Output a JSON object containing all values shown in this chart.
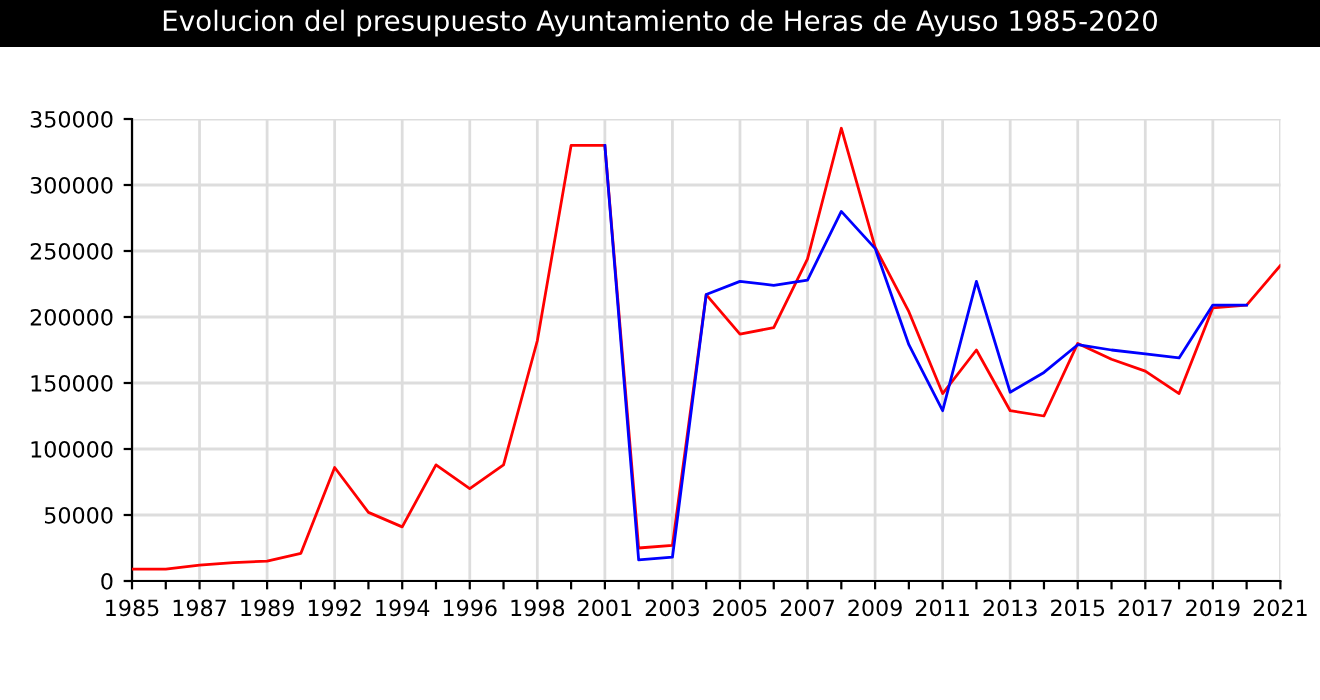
{
  "chart_data": {
    "type": "line",
    "title": "Evolucion del presupuesto Ayuntamiento de Heras de Ayuso 1985-2020",
    "categories": [
      "1985",
      null,
      "1987",
      null,
      "1989",
      null,
      "1992",
      null,
      "1994",
      null,
      "1996",
      null,
      "1998",
      null,
      "2001",
      null,
      "2003",
      null,
      "2005",
      null,
      "2007",
      null,
      "2009",
      null,
      "2011",
      null,
      "2013",
      null,
      "2015",
      null,
      "2017",
      null,
      "2019",
      null,
      "2021"
    ],
    "series": [
      {
        "color": "#ff0000",
        "values": [
          9000,
          9000,
          12000,
          14000,
          15000,
          21000,
          86000,
          52000,
          41000,
          88000,
          70000,
          88000,
          182000,
          330000,
          330000,
          25000,
          27000,
          217000,
          187000,
          192000,
          244000,
          343000,
          253000,
          204000,
          142000,
          175000,
          129000,
          125000,
          180000,
          168000,
          159000,
          142000,
          207000,
          209000,
          239000
        ]
      },
      {
        "color": "#0000ff",
        "values": [
          null,
          null,
          null,
          null,
          null,
          null,
          null,
          null,
          null,
          null,
          null,
          null,
          null,
          null,
          330000,
          16000,
          18000,
          217000,
          227000,
          224000,
          228000,
          280000,
          252000,
          179000,
          129000,
          227000,
          143000,
          158000,
          179000,
          175000,
          172000,
          169000,
          209000,
          209000,
          null
        ]
      }
    ],
    "ylim": [
      0,
      350000
    ],
    "yticks": [
      0,
      50000,
      100000,
      150000,
      200000,
      250000,
      300000,
      350000
    ],
    "grid": true,
    "marker": "none",
    "line_style": "solid",
    "legend": false
  }
}
